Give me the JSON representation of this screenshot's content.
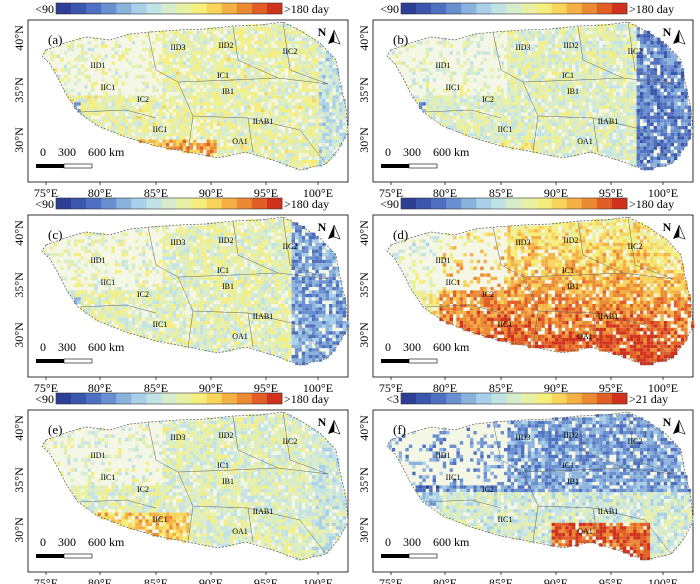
{
  "legend_colors": [
    "#2c3f95",
    "#3b56ad",
    "#4f6fc0",
    "#6a8fd0",
    "#8bb1dd",
    "#a9d0e8",
    "#c2e3e6",
    "#d7eccd",
    "#e8f0a6",
    "#f5ee7c",
    "#f8d45b",
    "#f4b044",
    "#ec8a33",
    "#e25e27",
    "#d1321d"
  ],
  "panels": [
    {
      "letter": "(a)",
      "legend_min": "<90",
      "legend_max": ">180 day",
      "palette": "a"
    },
    {
      "letter": "(b)",
      "legend_min": "<90",
      "legend_max": ">180 day",
      "palette": "b"
    },
    {
      "letter": "(c)",
      "legend_min": "<90",
      "legend_max": ">180 day",
      "palette": "c"
    },
    {
      "letter": "(d)",
      "legend_min": "<90",
      "legend_max": ">180 day",
      "palette": "d"
    },
    {
      "letter": "(e)",
      "legend_min": "<90",
      "legend_max": ">180 day",
      "palette": "e"
    },
    {
      "letter": "(f)",
      "legend_min": "<3",
      "legend_max": ">21 day",
      "palette": "f"
    }
  ],
  "lat_labels": [
    "40°N",
    "35°N",
    "30°N"
  ],
  "lon_labels": [
    "75°E",
    "80°E",
    "85°E",
    "90°E",
    "95°E",
    "100°E"
  ],
  "scale_bar": {
    "zero": "0",
    "mid": "300",
    "end": "600 km"
  },
  "north_label": "N",
  "regions": [
    {
      "name": "IID3"
    },
    {
      "name": "IID2"
    },
    {
      "name": "IIC2"
    },
    {
      "name": "IID1"
    },
    {
      "name": "IC1"
    },
    {
      "name": "IIC1"
    },
    {
      "name": "IB1"
    },
    {
      "name": "IC2"
    },
    {
      "name": "IIAB1"
    },
    {
      "name": "OA1"
    },
    {
      "name": "IIC1"
    }
  ]
}
